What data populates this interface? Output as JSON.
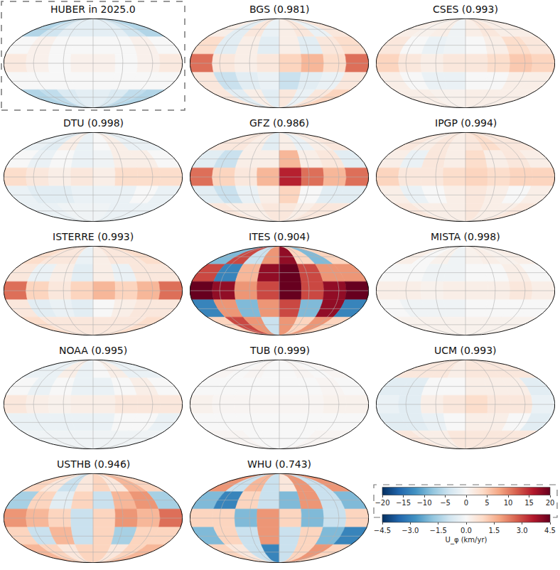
{
  "chart_data": {
    "type": "map",
    "lat_edges": [
      90,
      45,
      15,
      -15,
      -45,
      -90
    ],
    "lon_edges": [
      -180,
      -135,
      -90,
      -45,
      0,
      45,
      90,
      135,
      180
    ],
    "color_bars": [
      {
        "range": [
          -20,
          20
        ],
        "ticks": [
          {
            "value": -20,
            "label": "−20"
          },
          {
            "value": -15,
            "label": "−15"
          },
          {
            "value": -10,
            "label": "−10"
          },
          {
            "value": -5,
            "label": "−5"
          },
          0,
          5,
          10,
          15,
          20
        ]
      },
      {
        "range": [
          -4.5,
          4.5
        ],
        "ticks": [
          {
            "value": -4.5,
            "label": "−4.5"
          },
          {
            "value": -3,
            "label": "−3.0"
          },
          {
            "value": -1.5,
            "label": "−1.5"
          },
          {
            "value": 0,
            "label": "0.0"
          },
          1.5,
          {
            "value": 3,
            "label": "3.0"
          },
          4.5
        ],
        "label": "U_φ (km/yr)"
      }
    ],
    "panels": [
      {
        "title": "HUBER in 2025.0",
        "color_bar": 0,
        "cells": [
          [
            -6,
            -4,
            -2,
            -2,
            -2,
            -2,
            -4,
            -6
          ],
          [
            0,
            1,
            0,
            0,
            0,
            0,
            1,
            0
          ],
          [
            2,
            1,
            0,
            1,
            1,
            0,
            1,
            2
          ],
          [
            0,
            0,
            0,
            0,
            0,
            0,
            0,
            0
          ],
          [
            -6,
            -5,
            -3,
            -2,
            -2,
            -3,
            -5,
            -6
          ]
        ]
      },
      {
        "title": "BGS (0.981)",
        "color_bar": 1,
        "cells": [
          [
            0.3,
            -0.5,
            0.5,
            -0.3,
            0.3,
            0.5,
            -0.3,
            0.5
          ],
          [
            0.8,
            -0.5,
            0.3,
            -0.5,
            0.3,
            -0.5,
            0.5,
            0.8
          ],
          [
            2.5,
            0.5,
            0.3,
            0.5,
            1,
            1.5,
            0.8,
            2.5
          ],
          [
            0.5,
            -1,
            -0.5,
            -0.3,
            -1,
            -0.5,
            -0.3,
            0.5
          ],
          [
            0.5,
            -0.5,
            0.3,
            -0.5,
            0.5,
            -0.3,
            0.5,
            1
          ]
        ]
      },
      {
        "title": "CSES (0.993)",
        "color_bar": 1,
        "cells": [
          [
            0.3,
            0.2,
            0.3,
            -0.2,
            0.3,
            0.5,
            0.3,
            0.3
          ],
          [
            0.5,
            0,
            -0.3,
            -0.2,
            0,
            0.3,
            0.8,
            0.5
          ],
          [
            1,
            0.5,
            0.3,
            0.5,
            0.5,
            0.8,
            1.2,
            1
          ],
          [
            0.3,
            0,
            -0.3,
            -0.3,
            0,
            0,
            0.3,
            0.3
          ],
          [
            0.3,
            0.3,
            0.2,
            0.2,
            0.3,
            0.3,
            0.3,
            0.3
          ]
        ]
      },
      {
        "title": "DTU (0.998)",
        "color_bar": 1,
        "cells": [
          [
            -0.3,
            -0.5,
            0.3,
            -0.3,
            0,
            0.3,
            -0.3,
            -0.3
          ],
          [
            0,
            -0.3,
            0,
            -0.3,
            -0.2,
            0.3,
            0.3,
            0
          ],
          [
            0.8,
            0.5,
            0.3,
            0.5,
            0.3,
            0.8,
            0.8,
            0.8
          ],
          [
            -0.3,
            -0.5,
            -0.5,
            -0.3,
            -0.3,
            -0.3,
            0,
            -0.3
          ],
          [
            -0.3,
            -0.3,
            -0.2,
            -0.2,
            -0.2,
            -0.3,
            -0.3,
            -0.3
          ]
        ]
      },
      {
        "title": "GFZ (0.986)",
        "color_bar": 1,
        "cells": [
          [
            0.5,
            0.5,
            0.3,
            -0.5,
            0.3,
            -0.3,
            0.3,
            0.5
          ],
          [
            -0.5,
            -1,
            0.3,
            0.3,
            1.5,
            0.3,
            0.5,
            -0.5
          ],
          [
            2.5,
            1,
            0.5,
            1.5,
            3.5,
            2.5,
            1.5,
            2.5
          ],
          [
            -0.5,
            -1,
            -0.3,
            0.3,
            1,
            0,
            -0.5,
            -0.5
          ],
          [
            0.5,
            0.3,
            0.3,
            0.5,
            0.5,
            0.3,
            0.5,
            0.5
          ]
        ]
      },
      {
        "title": "IPGP (0.994)",
        "color_bar": 1,
        "cells": [
          [
            0.5,
            0.3,
            0.5,
            0.3,
            0.5,
            0.8,
            0.5,
            0.5
          ],
          [
            0.3,
            -0.3,
            0.5,
            0.3,
            0.8,
            0.3,
            0.5,
            0.3
          ],
          [
            1,
            0.5,
            0.5,
            0.8,
            1,
            0.8,
            1,
            1
          ],
          [
            0.3,
            -0.3,
            0,
            0.3,
            0.5,
            0.3,
            0,
            0.3
          ],
          [
            0.5,
            0.3,
            0.3,
            0.3,
            0.5,
            0.3,
            0.3,
            0.5
          ]
        ]
      },
      {
        "title": "ISTERRE (0.993)",
        "color_bar": 1,
        "cells": [
          [
            0.8,
            0.5,
            0.5,
            -0.3,
            0.3,
            0.5,
            0.5,
            0.8
          ],
          [
            0.5,
            -0.3,
            0.3,
            -0.5,
            0.3,
            -0.3,
            0.5,
            0.5
          ],
          [
            2.5,
            1,
            0.5,
            1,
            1.5,
            1,
            1.5,
            2.5
          ],
          [
            0.5,
            -0.5,
            -0.3,
            -0.5,
            0,
            0.3,
            0.5,
            0.5
          ],
          [
            0.8,
            0.5,
            0.5,
            0.5,
            0.5,
            0.5,
            0.5,
            0.8
          ]
        ]
      },
      {
        "title": "ITES (0.904)",
        "color_bar": 1,
        "cells": [
          [
            -2,
            3,
            -1,
            2,
            4,
            1,
            -2,
            1
          ],
          [
            3,
            -3,
            1.5,
            4,
            4.5,
            3,
            2,
            2
          ],
          [
            4.5,
            4,
            2,
            3,
            4.5,
            3,
            4,
            4.5
          ],
          [
            -3,
            2,
            -2,
            2,
            3,
            -2,
            4,
            -3
          ],
          [
            1,
            3,
            2,
            -1,
            2,
            1,
            2,
            1
          ]
        ]
      },
      {
        "title": "MISTA (0.998)",
        "color_bar": 1,
        "cells": [
          [
            0.3,
            0,
            0.2,
            -0.2,
            0.2,
            0.3,
            0.2,
            0.3
          ],
          [
            0,
            0,
            -0.2,
            -0.2,
            0,
            0,
            0.3,
            0
          ],
          [
            0.3,
            0.3,
            0.2,
            0.3,
            0.3,
            0.3,
            0.5,
            0.3
          ],
          [
            0,
            -0.2,
            -0.2,
            -0.2,
            0,
            0,
            0,
            0
          ],
          [
            0.2,
            0.2,
            0.2,
            0.2,
            0.2,
            0.2,
            0.2,
            0.2
          ]
        ]
      },
      {
        "title": "NOAA (0.995)",
        "color_bar": 1,
        "cells": [
          [
            -0.3,
            -0.3,
            0.3,
            -0.3,
            0,
            0.3,
            -0.3,
            -0.3
          ],
          [
            0,
            -0.3,
            0,
            -0.3,
            -0.3,
            0,
            0.3,
            0
          ],
          [
            0.5,
            0.3,
            0.2,
            0.3,
            0.3,
            0.5,
            0.5,
            0.5
          ],
          [
            -0.3,
            -0.3,
            -0.3,
            -0.3,
            -0.3,
            0,
            0,
            -0.3
          ],
          [
            -0.2,
            -0.2,
            -0.2,
            -0.2,
            -0.2,
            -0.2,
            -0.2,
            -0.2
          ]
        ]
      },
      {
        "title": "TUB (0.999)",
        "color_bar": 1,
        "cells": [
          [
            0.1,
            0,
            0.1,
            0,
            0,
            0.1,
            0,
            0.1
          ],
          [
            0,
            0,
            0,
            0,
            0,
            0,
            0.1,
            0
          ],
          [
            0.2,
            0.1,
            0.1,
            0.1,
            0.1,
            0.1,
            0.2,
            0.2
          ],
          [
            0,
            0,
            0,
            0,
            0,
            0,
            0,
            0
          ],
          [
            0.1,
            0.1,
            0,
            0,
            0,
            0,
            0.1,
            0.1
          ]
        ]
      },
      {
        "title": "UCM (0.993)",
        "color_bar": 1,
        "cells": [
          [
            0.5,
            0.5,
            0.5,
            0.3,
            0.5,
            0.5,
            0.5,
            0.5
          ],
          [
            -0.5,
            -0.5,
            0,
            0,
            0.3,
            0.3,
            0.3,
            -0.5
          ],
          [
            -0.3,
            -0.5,
            0.3,
            0.5,
            0.8,
            0.5,
            0.5,
            -0.3
          ],
          [
            -0.5,
            -0.5,
            -0.3,
            0,
            0.3,
            0.3,
            0,
            -0.5
          ],
          [
            0.5,
            0.3,
            0.3,
            0.5,
            0.5,
            0.5,
            0.5,
            0.5
          ]
        ]
      },
      {
        "title": "USTHB (0.946)",
        "color_bar": 1,
        "cells": [
          [
            1,
            0.5,
            -1,
            0.5,
            1,
            0.5,
            1.5,
            1
          ],
          [
            -1.5,
            1,
            -0.5,
            1,
            -1,
            1.5,
            2,
            -1.5
          ],
          [
            2,
            1.5,
            1,
            -1,
            1,
            2,
            1.5,
            2.5
          ],
          [
            1,
            -1,
            1.5,
            -1,
            1,
            -1.5,
            1,
            1
          ],
          [
            1.5,
            1,
            0.5,
            1,
            1,
            0.5,
            1,
            1.5
          ]
        ]
      },
      {
        "title": "WHU (0.743)",
        "color_bar": 1,
        "cells": [
          [
            2,
            -1,
            1.5,
            -1,
            0.5,
            2,
            -1,
            2
          ],
          [
            -2,
            -3,
            1,
            -1,
            -2,
            2,
            -1,
            -2
          ],
          [
            1,
            1,
            -2,
            2,
            1,
            -2,
            -1,
            1
          ],
          [
            -2,
            1,
            -1,
            2,
            -1,
            1,
            -2,
            -3
          ],
          [
            1,
            0.5,
            -1,
            -3,
            -1,
            1,
            2,
            1
          ]
        ]
      }
    ]
  }
}
